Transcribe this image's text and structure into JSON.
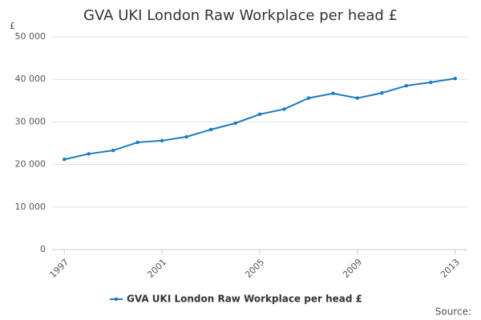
{
  "chart_data": {
    "type": "line",
    "title": "GVA UKI London Raw Workplace per head £",
    "y_label": "£",
    "source": "Source:",
    "x": [
      1997,
      1998,
      1999,
      2000,
      2001,
      2002,
      2003,
      2004,
      2005,
      2006,
      2007,
      2008,
      2009,
      2010,
      2011,
      2012,
      2013
    ],
    "series": [
      {
        "name": "GVA UKI London Raw Workplace per head £",
        "color": "#1a7bbf",
        "values": [
          21200,
          22500,
          23300,
          25200,
          25600,
          26500,
          28200,
          29700,
          31800,
          33000,
          35600,
          36700,
          35600,
          36800,
          38500,
          39300,
          40200
        ]
      }
    ],
    "xlim": [
      1996.5,
      2013.5
    ],
    "xticks": [
      1997,
      2001,
      2005,
      2009,
      2013
    ],
    "ylim": [
      0,
      50000
    ],
    "yticks": [
      0,
      {
        "value": 10000,
        "label": "10 000"
      },
      {
        "value": 20000,
        "label": "20 000"
      },
      {
        "value": 30000,
        "label": "30 000"
      },
      {
        "value": 40000,
        "label": "40 000"
      },
      {
        "value": 50000,
        "label": "50 000"
      }
    ],
    "grid": true
  }
}
